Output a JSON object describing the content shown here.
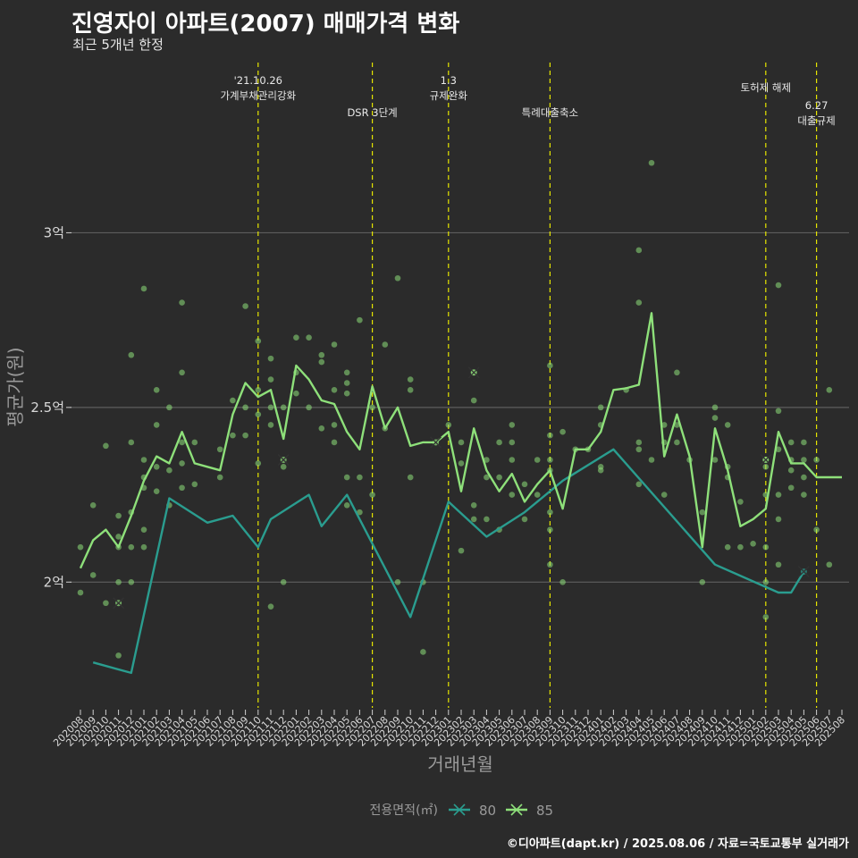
{
  "chart_data": {
    "type": "line",
    "title": "진영자이 아파트(2007) 매매가격 변화",
    "subtitle": "최근 5개년 한정",
    "xlabel": "거래년월",
    "ylabel": "평균가(원)",
    "caption": "©디아파트(dapt.kr) / 2025.08.06 / 자료=국토교통부 실거래가",
    "legend_title": "전용면적(㎡)",
    "legend_position": "bottom",
    "ylim": [
      1.64,
      3.5
    ],
    "y_ticks": [
      2.0,
      2.5,
      3.0
    ],
    "y_tick_labels": [
      "2억",
      "2.5억",
      "3억"
    ],
    "grid": true,
    "x_ticks": [
      "202008",
      "202009",
      "202010",
      "202011",
      "202012",
      "202101",
      "202102",
      "202103",
      "202104",
      "202105",
      "202106",
      "202107",
      "202108",
      "202109",
      "202110",
      "202111",
      "202112",
      "202201",
      "202202",
      "202203",
      "202204",
      "202205",
      "202206",
      "202207",
      "202208",
      "202209",
      "202210",
      "202211",
      "202212",
      "202301",
      "202302",
      "202303",
      "202304",
      "202305",
      "202306",
      "202307",
      "202308",
      "202309",
      "202310",
      "202311",
      "202312",
      "202401",
      "202402",
      "202403",
      "202404",
      "202405",
      "202406",
      "202407",
      "202408",
      "202409",
      "202410",
      "202411",
      "202412",
      "202501",
      "202502",
      "202503",
      "202504",
      "202505",
      "202506",
      "202507",
      "202508"
    ],
    "events": [
      {
        "x": 14.0,
        "label": "'21.10.26\n가계부채관리강화",
        "row": 0
      },
      {
        "x": 23.0,
        "label": "DSR 3단계",
        "row": 2
      },
      {
        "x": 29.0,
        "label": "1.3\n규제완화",
        "row": 0
      },
      {
        "x": 37.0,
        "label": "특례대출축소",
        "row": 2
      },
      {
        "x": 54.0,
        "label": "토허제 해제",
        "row": 1
      },
      {
        "x": 58.0,
        "label": "6.27\n대출규제",
        "row": 3
      }
    ],
    "series": [
      {
        "name": "80",
        "color": "#2a9d8f",
        "x": [
          1,
          4,
          7,
          10,
          12,
          14,
          15,
          18,
          19,
          21,
          26,
          29,
          32,
          35,
          38,
          42,
          50,
          55,
          56,
          57
        ],
        "y": [
          1.77,
          1.74,
          2.24,
          2.17,
          2.19,
          2.1,
          2.18,
          2.25,
          2.16,
          2.25,
          1.9,
          2.23,
          2.13,
          2.2,
          2.29,
          2.38,
          2.05,
          1.97,
          1.97,
          2.03
        ],
        "highlight": [
          {
            "x": 57,
            "y": 2.03
          }
        ]
      },
      {
        "name": "85",
        "color": "#8ee07a",
        "x": [
          0,
          1,
          2,
          3,
          4,
          5,
          6,
          7,
          8,
          9,
          10,
          11,
          12,
          13,
          14,
          15,
          16,
          17,
          18,
          19,
          20,
          21,
          22,
          23,
          24,
          25,
          26,
          27,
          28,
          29,
          30,
          31,
          32,
          33,
          34,
          35,
          36,
          37,
          38,
          39,
          40,
          41,
          42,
          43,
          44,
          45,
          46,
          47,
          48,
          49,
          50,
          51,
          52,
          53,
          54,
          55,
          56,
          57,
          58,
          59,
          60
        ],
        "y": [
          2.04,
          2.12,
          2.15,
          2.1,
          2.19,
          2.29,
          2.36,
          2.34,
          2.43,
          2.34,
          2.33,
          2.32,
          2.48,
          2.57,
          2.53,
          2.55,
          2.41,
          2.62,
          2.58,
          2.52,
          2.51,
          2.43,
          2.38,
          2.56,
          2.44,
          2.5,
          2.39,
          2.4,
          2.4,
          2.43,
          2.26,
          2.44,
          2.32,
          2.26,
          2.31,
          2.23,
          2.28,
          2.32,
          2.21,
          2.38,
          2.38,
          2.43,
          2.55,
          2.555,
          2.565,
          2.77,
          2.36,
          2.48,
          2.36,
          2.1,
          2.44,
          2.32,
          2.16,
          2.18,
          2.21,
          2.43,
          2.34,
          2.34,
          2.3,
          2.3,
          2.3
        ],
        "highlight": [
          {
            "x": 3,
            "y": 1.94
          },
          {
            "x": 16,
            "y": 2.35
          },
          {
            "x": 31,
            "y": 2.6
          },
          {
            "x": 28,
            "y": 2.4
          },
          {
            "x": 54,
            "y": 2.35
          }
        ]
      }
    ],
    "points": [
      [
        0,
        2.1
      ],
      [
        0,
        1.97
      ],
      [
        1,
        2.22
      ],
      [
        1,
        2.02
      ],
      [
        2,
        2.39
      ],
      [
        2,
        1.94
      ],
      [
        3,
        2.13
      ],
      [
        3,
        2.1
      ],
      [
        3,
        2.19
      ],
      [
        3,
        2.0
      ],
      [
        3,
        1.79
      ],
      [
        4,
        2.65
      ],
      [
        4,
        2.4
      ],
      [
        4,
        2.2
      ],
      [
        4,
        2.1
      ],
      [
        4,
        2.0
      ],
      [
        5,
        2.84
      ],
      [
        5,
        2.35
      ],
      [
        5,
        2.3
      ],
      [
        5,
        2.27
      ],
      [
        5,
        2.15
      ],
      [
        5,
        2.1
      ],
      [
        6,
        2.55
      ],
      [
        6,
        2.45
      ],
      [
        6,
        2.33
      ],
      [
        6,
        2.26
      ],
      [
        7,
        2.5
      ],
      [
        7,
        2.32
      ],
      [
        7,
        2.22
      ],
      [
        8,
        2.8
      ],
      [
        8,
        2.6
      ],
      [
        8,
        2.4
      ],
      [
        8,
        2.34
      ],
      [
        8,
        2.27
      ],
      [
        9,
        2.4
      ],
      [
        9,
        2.28
      ],
      [
        11,
        2.38
      ],
      [
        11,
        2.3
      ],
      [
        12,
        2.52
      ],
      [
        12,
        2.42
      ],
      [
        13,
        2.79
      ],
      [
        13,
        2.5
      ],
      [
        13,
        2.42
      ],
      [
        14,
        2.69
      ],
      [
        14,
        2.55
      ],
      [
        14,
        2.48
      ],
      [
        14,
        2.34
      ],
      [
        15,
        2.64
      ],
      [
        15,
        2.58
      ],
      [
        15,
        2.5
      ],
      [
        15,
        2.45
      ],
      [
        15,
        1.93
      ],
      [
        16,
        2.5
      ],
      [
        16,
        2.33
      ],
      [
        16,
        2.0
      ],
      [
        17,
        2.7
      ],
      [
        17,
        2.6
      ],
      [
        17,
        2.54
      ],
      [
        18,
        2.7
      ],
      [
        18,
        2.5
      ],
      [
        19,
        2.65
      ],
      [
        19,
        2.63
      ],
      [
        19,
        2.44
      ],
      [
        20,
        2.68
      ],
      [
        20,
        2.55
      ],
      [
        20,
        2.45
      ],
      [
        20,
        2.4
      ],
      [
        21,
        2.6
      ],
      [
        21,
        2.57
      ],
      [
        21,
        2.54
      ],
      [
        21,
        2.3
      ],
      [
        21,
        2.22
      ],
      [
        22,
        2.75
      ],
      [
        22,
        2.3
      ],
      [
        22,
        2.2
      ],
      [
        23,
        2.5
      ],
      [
        23,
        2.25
      ],
      [
        24,
        2.68
      ],
      [
        24,
        2.44
      ],
      [
        25,
        2.87
      ],
      [
        25,
        2.0
      ],
      [
        26,
        2.58
      ],
      [
        26,
        2.55
      ],
      [
        26,
        2.3
      ],
      [
        27,
        2.0
      ],
      [
        27,
        1.8
      ],
      [
        29,
        2.45
      ],
      [
        30,
        2.4
      ],
      [
        30,
        2.34
      ],
      [
        30,
        2.09
      ],
      [
        31,
        2.6
      ],
      [
        31,
        2.52
      ],
      [
        31,
        2.22
      ],
      [
        31,
        2.18
      ],
      [
        32,
        2.35
      ],
      [
        32,
        2.3
      ],
      [
        32,
        2.18
      ],
      [
        33,
        2.4
      ],
      [
        33,
        2.3
      ],
      [
        33,
        2.15
      ],
      [
        34,
        2.45
      ],
      [
        34,
        2.4
      ],
      [
        34,
        2.35
      ],
      [
        34,
        2.25
      ],
      [
        35,
        2.28
      ],
      [
        35,
        2.18
      ],
      [
        36,
        2.35
      ],
      [
        36,
        2.25
      ],
      [
        37,
        2.42
      ],
      [
        37,
        2.35
      ],
      [
        37,
        2.32
      ],
      [
        37,
        2.2
      ],
      [
        37,
        2.05
      ],
      [
        37,
        2.62
      ],
      [
        37,
        2.15
      ],
      [
        38,
        2.43
      ],
      [
        38,
        2.0
      ],
      [
        39,
        2.38
      ],
      [
        40,
        2.38
      ],
      [
        41,
        2.5
      ],
      [
        41,
        2.45
      ],
      [
        41,
        2.32
      ],
      [
        41,
        2.33
      ],
      [
        43,
        2.55
      ],
      [
        44,
        2.95
      ],
      [
        44,
        2.8
      ],
      [
        44,
        2.4
      ],
      [
        44,
        2.38
      ],
      [
        44,
        2.28
      ],
      [
        45,
        3.2
      ],
      [
        45,
        2.35
      ],
      [
        46,
        2.45
      ],
      [
        46,
        2.4
      ],
      [
        46,
        2.25
      ],
      [
        47,
        2.6
      ],
      [
        47,
        2.45
      ],
      [
        47,
        2.4
      ],
      [
        48,
        2.35
      ],
      [
        49,
        2.2
      ],
      [
        49,
        2.0
      ],
      [
        50,
        2.5
      ],
      [
        50,
        2.47
      ],
      [
        50,
        2.35
      ],
      [
        51,
        2.45
      ],
      [
        51,
        2.33
      ],
      [
        51,
        2.3
      ],
      [
        51,
        2.1
      ],
      [
        52,
        2.23
      ],
      [
        52,
        2.1
      ],
      [
        53,
        2.11
      ],
      [
        54,
        2.35
      ],
      [
        54,
        2.33
      ],
      [
        54,
        2.25
      ],
      [
        54,
        2.1
      ],
      [
        54,
        2.0
      ],
      [
        54,
        1.9
      ],
      [
        55,
        2.85
      ],
      [
        55,
        2.49
      ],
      [
        55,
        2.38
      ],
      [
        55,
        2.25
      ],
      [
        55,
        2.18
      ],
      [
        55,
        2.05
      ],
      [
        56,
        2.4
      ],
      [
        56,
        2.35
      ],
      [
        56,
        2.32
      ],
      [
        56,
        2.27
      ],
      [
        57,
        2.4
      ],
      [
        57,
        2.35
      ],
      [
        57,
        2.3
      ],
      [
        57,
        2.25
      ],
      [
        58,
        2.35
      ],
      [
        58,
        2.15
      ],
      [
        59,
        2.55
      ],
      [
        59,
        2.05
      ]
    ]
  }
}
